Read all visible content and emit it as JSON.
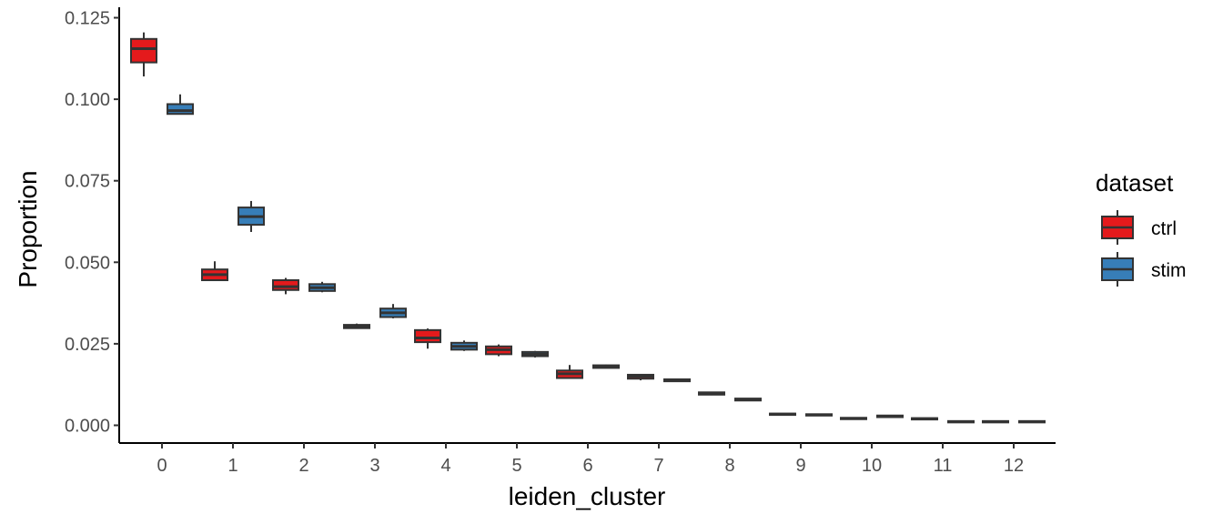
{
  "chart_data": {
    "type": "box",
    "xlabel": "leiden_cluster",
    "ylabel": "Proportion",
    "ylim": [
      -0.005,
      0.126
    ],
    "y_ticks": [
      "0.000",
      "0.025",
      "0.050",
      "0.075",
      "0.100",
      "0.125"
    ],
    "categories": [
      "0",
      "1",
      "2",
      "3",
      "4",
      "5",
      "6",
      "7",
      "8",
      "9",
      "10",
      "11",
      "12"
    ],
    "legend": {
      "title": "dataset",
      "position": "right"
    },
    "grid": false,
    "series": [
      {
        "name": "ctrl",
        "color": "#E41A1C",
        "boxes": [
          {
            "min": 0.107,
            "q1": 0.1113,
            "median": 0.1155,
            "q3": 0.1185,
            "max": 0.1205
          },
          {
            "min": 0.0445,
            "q1": 0.0445,
            "median": 0.0462,
            "q3": 0.0478,
            "max": 0.0503
          },
          {
            "min": 0.0402,
            "q1": 0.0415,
            "median": 0.0425,
            "q3": 0.0445,
            "max": 0.0452
          },
          {
            "min": 0.0297,
            "q1": 0.0298,
            "median": 0.0303,
            "q3": 0.0308,
            "max": 0.0312
          },
          {
            "min": 0.0235,
            "q1": 0.0255,
            "median": 0.0268,
            "q3": 0.0292,
            "max": 0.0297
          },
          {
            "min": 0.0212,
            "q1": 0.0218,
            "median": 0.0232,
            "q3": 0.0242,
            "max": 0.0248
          },
          {
            "min": 0.0145,
            "q1": 0.0145,
            "median": 0.0158,
            "q3": 0.0168,
            "max": 0.0185
          },
          {
            "min": 0.0138,
            "q1": 0.0143,
            "median": 0.015,
            "q3": 0.0155,
            "max": 0.0157
          },
          {
            "min": 0.0092,
            "q1": 0.0094,
            "median": 0.0098,
            "q3": 0.0101,
            "max": 0.0103
          },
          {
            "min": 0.0031,
            "q1": 0.0032,
            "median": 0.0034,
            "q3": 0.0036,
            "max": 0.0037
          },
          {
            "min": 0.0018,
            "q1": 0.0019,
            "median": 0.0021,
            "q3": 0.0023,
            "max": 0.0024
          },
          {
            "min": 0.0017,
            "q1": 0.0018,
            "median": 0.002,
            "q3": 0.0022,
            "max": 0.0023
          },
          {
            "min": 0.0009,
            "q1": 0.0009,
            "median": 0.0011,
            "q3": 0.0013,
            "max": 0.0014
          }
        ]
      },
      {
        "name": "stim",
        "color": "#377EB8",
        "boxes": [
          {
            "min": 0.0955,
            "q1": 0.0955,
            "median": 0.0965,
            "q3": 0.0985,
            "max": 0.1015
          },
          {
            "min": 0.0593,
            "q1": 0.0615,
            "median": 0.064,
            "q3": 0.0668,
            "max": 0.0688
          },
          {
            "min": 0.0408,
            "q1": 0.0412,
            "median": 0.0422,
            "q3": 0.0433,
            "max": 0.044
          },
          {
            "min": 0.0328,
            "q1": 0.0332,
            "median": 0.0345,
            "q3": 0.0358,
            "max": 0.0372
          },
          {
            "min": 0.0228,
            "q1": 0.0232,
            "median": 0.0242,
            "q3": 0.0253,
            "max": 0.026
          },
          {
            "min": 0.0208,
            "q1": 0.0212,
            "median": 0.0218,
            "q3": 0.0225,
            "max": 0.0228
          },
          {
            "min": 0.0175,
            "q1": 0.0176,
            "median": 0.018,
            "q3": 0.0184,
            "max": 0.0186
          },
          {
            "min": 0.0133,
            "q1": 0.0135,
            "median": 0.0138,
            "q3": 0.0141,
            "max": 0.0143
          },
          {
            "min": 0.0075,
            "q1": 0.0076,
            "median": 0.0079,
            "q3": 0.0082,
            "max": 0.0083
          },
          {
            "min": 0.0029,
            "q1": 0.003,
            "median": 0.0032,
            "q3": 0.0034,
            "max": 0.0035
          },
          {
            "min": 0.0024,
            "q1": 0.0025,
            "median": 0.0027,
            "q3": 0.003,
            "max": 0.0031
          },
          {
            "min": 0.0008,
            "q1": 0.0009,
            "median": 0.0011,
            "q3": 0.0013,
            "max": 0.0014
          },
          {
            "min": 0.0008,
            "q1": 0.0009,
            "median": 0.0011,
            "q3": 0.0013,
            "max": 0.0014
          }
        ]
      }
    ]
  }
}
